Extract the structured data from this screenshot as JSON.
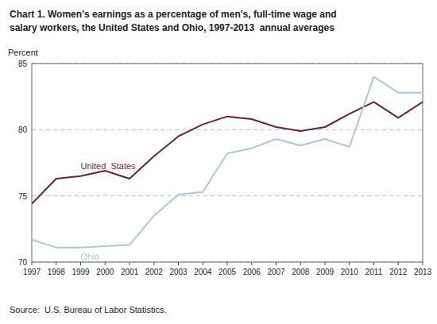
{
  "chart_data": {
    "type": "line",
    "title": "Chart 1. Women's earnings as a percentage of men's, full-time wage and",
    "subtitle": "salary workers, the United States and Ohio, 1997-2013  annual averages",
    "y_label": "Percent",
    "annotations": [
      "Source:  U.S. Bureau of Labor Statistics."
    ],
    "x": [
      1997,
      1998,
      1999,
      2000,
      2001,
      2002,
      2003,
      2004,
      2005,
      2006,
      2007,
      2008,
      2009,
      2010,
      2011,
      2012,
      2013
    ],
    "series": [
      {
        "name": "United  States",
        "color": "#6d1f3e",
        "values": [
          74.4,
          76.3,
          76.5,
          76.9,
          76.3,
          78.0,
          79.5,
          80.4,
          81.0,
          80.8,
          80.2,
          79.9,
          80.2,
          81.2,
          82.1,
          80.9,
          82.1
        ]
      },
      {
        "name": "Ohio",
        "color": "#aac7e0",
        "values": [
          71.7,
          71.1,
          71.1,
          71.2,
          71.3,
          73.5,
          75.1,
          75.3,
          78.2,
          78.6,
          79.3,
          78.8,
          79.3,
          78.7,
          84.0,
          82.8,
          82.8
        ]
      }
    ],
    "xlim": [
      1997,
      2013
    ],
    "xticks": [
      1997,
      1998,
      1999,
      2000,
      2001,
      2002,
      2003,
      2004,
      2005,
      2006,
      2007,
      2008,
      2009,
      2010,
      2011,
      2012,
      2013
    ],
    "ylim": [
      70,
      85
    ],
    "yticks": [
      70,
      75,
      80,
      85
    ],
    "grid": true
  }
}
